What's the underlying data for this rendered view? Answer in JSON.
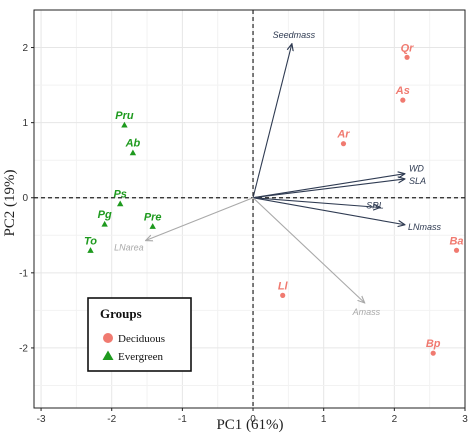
{
  "chart_data": {
    "type": "scatter",
    "subtype": "pca-biplot",
    "xlabel": "PC1 (61%)",
    "ylabel": "PC2 (19%)",
    "xlim": [
      -3.1,
      3.0
    ],
    "ylim": [
      -2.8,
      2.5
    ],
    "xticks": [
      -3,
      -2,
      -1,
      0,
      1,
      2,
      3
    ],
    "yticks": [
      -2,
      -1,
      0,
      1,
      2
    ],
    "grid": true,
    "reference_lines": {
      "x": 0,
      "y": 0,
      "style": "dashed"
    },
    "legend": {
      "title": "Groups",
      "placement": "bottom-left",
      "entries": [
        {
          "label": "Deciduous",
          "marker": "circle",
          "color": "#f07a70"
        },
        {
          "label": "Evergreen",
          "marker": "triangle",
          "color": "#1e9a1e"
        }
      ]
    },
    "series": [
      {
        "name": "Deciduous",
        "marker": "circle",
        "color": "#f07a70",
        "points": [
          {
            "label": "Qr",
            "x": 2.18,
            "y": 1.87
          },
          {
            "label": "As",
            "x": 2.12,
            "y": 1.3
          },
          {
            "label": "Ar",
            "x": 1.28,
            "y": 0.72
          },
          {
            "label": "Ba",
            "x": 2.88,
            "y": -0.7
          },
          {
            "label": "Ll",
            "x": 0.42,
            "y": -1.3
          },
          {
            "label": "Bp",
            "x": 2.55,
            "y": -2.07
          }
        ]
      },
      {
        "name": "Evergreen",
        "marker": "triangle",
        "color": "#1e9a1e",
        "points": [
          {
            "label": "Pru",
            "x": -1.82,
            "y": 0.97
          },
          {
            "label": "Ab",
            "x": -1.7,
            "y": 0.6
          },
          {
            "label": "Ps",
            "x": -1.88,
            "y": -0.08
          },
          {
            "label": "Pg",
            "x": -2.1,
            "y": -0.35
          },
          {
            "label": "Pre",
            "x": -1.42,
            "y": -0.38
          },
          {
            "label": "To",
            "x": -2.3,
            "y": -0.7
          }
        ]
      }
    ],
    "vectors": [
      {
        "label": "Seedmass",
        "x": 0.55,
        "y": 2.05,
        "color": "#2f3b52"
      },
      {
        "label": "WD",
        "x": 2.15,
        "y": 0.32,
        "color": "#2f3b52"
      },
      {
        "label": "SLA",
        "x": 2.15,
        "y": 0.25,
        "color": "#2f3b52"
      },
      {
        "label": "SRL",
        "x": 1.8,
        "y": -0.13,
        "color": "#2f3b52"
      },
      {
        "label": "LNmass",
        "x": 2.15,
        "y": -0.36,
        "color": "#2f3b52"
      },
      {
        "label": "LNarea",
        "x": -1.52,
        "y": -0.57,
        "color": "#a9a9a9"
      },
      {
        "label": "Amass",
        "x": 1.58,
        "y": -1.4,
        "color": "#a9a9a9"
      }
    ]
  }
}
